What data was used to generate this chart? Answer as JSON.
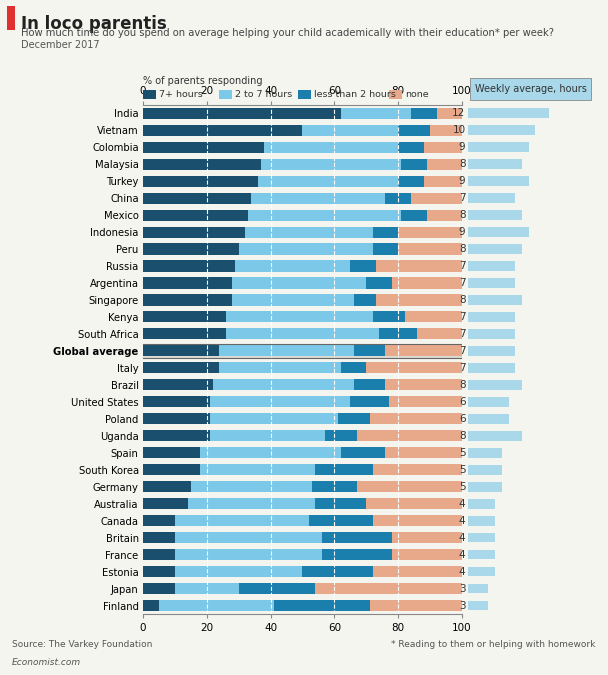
{
  "title": "In loco parentis",
  "subtitle": "How much time do you spend on average helping your child academically with their education* per week?",
  "date": "December 2017",
  "xlabel": "% of parents responding",
  "legend_labels": [
    "7+ hours",
    "2 to 7 hours",
    "less than 2 hours",
    "none"
  ],
  "weekly_label": "Weekly average, hours",
  "colors": [
    "#1a4f6e",
    "#7bc8e8",
    "#1b7fad",
    "#e8a98a"
  ],
  "source": "Source: The Varkey Foundation",
  "footnote": "* Reading to them or helping with homework",
  "economist_label": "Economist.com",
  "countries": [
    "India",
    "Vietnam",
    "Colombia",
    "Malaysia",
    "Turkey",
    "China",
    "Mexico",
    "Indonesia",
    "Peru",
    "Russia",
    "Argentina",
    "Singapore",
    "Kenya",
    "South Africa",
    "Global average",
    "Italy",
    "Brazil",
    "United States",
    "Poland",
    "Uganda",
    "Spain",
    "South Korea",
    "Germany",
    "Australia",
    "Canada",
    "Britain",
    "France",
    "Estonia",
    "Japan",
    "Finland"
  ],
  "weekly_hours": [
    12,
    10,
    9,
    8,
    9,
    7,
    8,
    9,
    8,
    7,
    7,
    8,
    7,
    7,
    7,
    7,
    8,
    6,
    6,
    8,
    5,
    5,
    5,
    4,
    4,
    4,
    4,
    4,
    3,
    3
  ],
  "data": [
    [
      62,
      22,
      8,
      8
    ],
    [
      50,
      30,
      10,
      10
    ],
    [
      38,
      42,
      8,
      12
    ],
    [
      37,
      44,
      8,
      11
    ],
    [
      36,
      44,
      8,
      12
    ],
    [
      34,
      42,
      8,
      16
    ],
    [
      33,
      48,
      8,
      11
    ],
    [
      32,
      40,
      8,
      20
    ],
    [
      30,
      42,
      8,
      20
    ],
    [
      29,
      36,
      8,
      27
    ],
    [
      28,
      42,
      8,
      22
    ],
    [
      28,
      38,
      7,
      27
    ],
    [
      26,
      46,
      10,
      18
    ],
    [
      26,
      48,
      12,
      14
    ],
    [
      24,
      42,
      10,
      24
    ],
    [
      24,
      38,
      8,
      30
    ],
    [
      22,
      44,
      10,
      24
    ],
    [
      21,
      44,
      12,
      23
    ],
    [
      21,
      40,
      10,
      29
    ],
    [
      21,
      36,
      10,
      33
    ],
    [
      18,
      44,
      14,
      24
    ],
    [
      18,
      36,
      18,
      28
    ],
    [
      15,
      38,
      14,
      33
    ],
    [
      14,
      40,
      16,
      30
    ],
    [
      10,
      42,
      20,
      28
    ],
    [
      10,
      46,
      22,
      22
    ],
    [
      10,
      46,
      22,
      22
    ],
    [
      10,
      40,
      22,
      28
    ],
    [
      10,
      20,
      24,
      46
    ],
    [
      5,
      36,
      30,
      29
    ]
  ]
}
